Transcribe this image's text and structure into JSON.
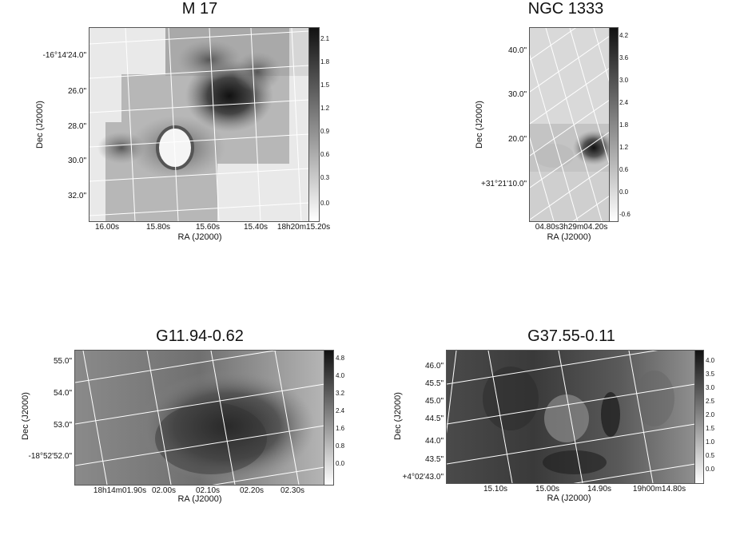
{
  "panels": [
    {
      "title": "M 17",
      "xaxis_label": "RA (J2000)",
      "yaxis_label": "Dec (J2000)",
      "x_ticks": [
        "16.00s",
        "15.80s",
        "15.60s",
        "15.40s",
        "18h20m15.20s"
      ],
      "y_ticks": [
        "-16°14'24.0\"",
        "26.0\"",
        "28.0\"",
        "30.0\"",
        "32.0\""
      ],
      "colorbar_ticks": [
        "2.1",
        "1.8",
        "1.5",
        "1.2",
        "0.9",
        "0.6",
        "0.3",
        "0.0"
      ]
    },
    {
      "title": "NGC 1333",
      "xaxis_label": "RA (J2000)",
      "yaxis_label": "Dec (J2000)",
      "x_ticks": [
        "04.80s3h29m04.20s"
      ],
      "y_ticks": [
        "40.0\"",
        "30.0\"",
        "20.0\"",
        "+31°21'10.0\""
      ],
      "colorbar_ticks": [
        "4.2",
        "3.6",
        "3.0",
        "2.4",
        "1.8",
        "1.2",
        "0.6",
        "0.0",
        "-0.6"
      ]
    },
    {
      "title": "G11.94-0.62",
      "xaxis_label": "RA (J2000)",
      "yaxis_label": "Dec (J2000)",
      "x_ticks": [
        "18h14m01.90s",
        "02.00s",
        "02.10s",
        "02.20s",
        "02.30s"
      ],
      "y_ticks": [
        "55.0\"",
        "54.0\"",
        "53.0\"",
        "-18°52'52.0\""
      ],
      "colorbar_ticks": [
        "4.8",
        "4.0",
        "3.2",
        "2.4",
        "1.6",
        "0.8",
        "0.0"
      ]
    },
    {
      "title": "G37.55-0.11",
      "xaxis_label": "RA (J2000)",
      "yaxis_label": "Dec (J2000)",
      "x_ticks": [
        "15.10s",
        "15.00s",
        "14.90s",
        "19h00m14.80s"
      ],
      "y_ticks": [
        "46.0\"",
        "45.5\"",
        "45.0\"",
        "44.5\"",
        "44.0\"",
        "43.5\"",
        "+4°02'43.0\""
      ],
      "colorbar_ticks": [
        "4.0",
        "3.5",
        "3.0",
        "2.5",
        "2.0",
        "1.5",
        "1.0",
        "0.5",
        "0.0"
      ]
    }
  ]
}
